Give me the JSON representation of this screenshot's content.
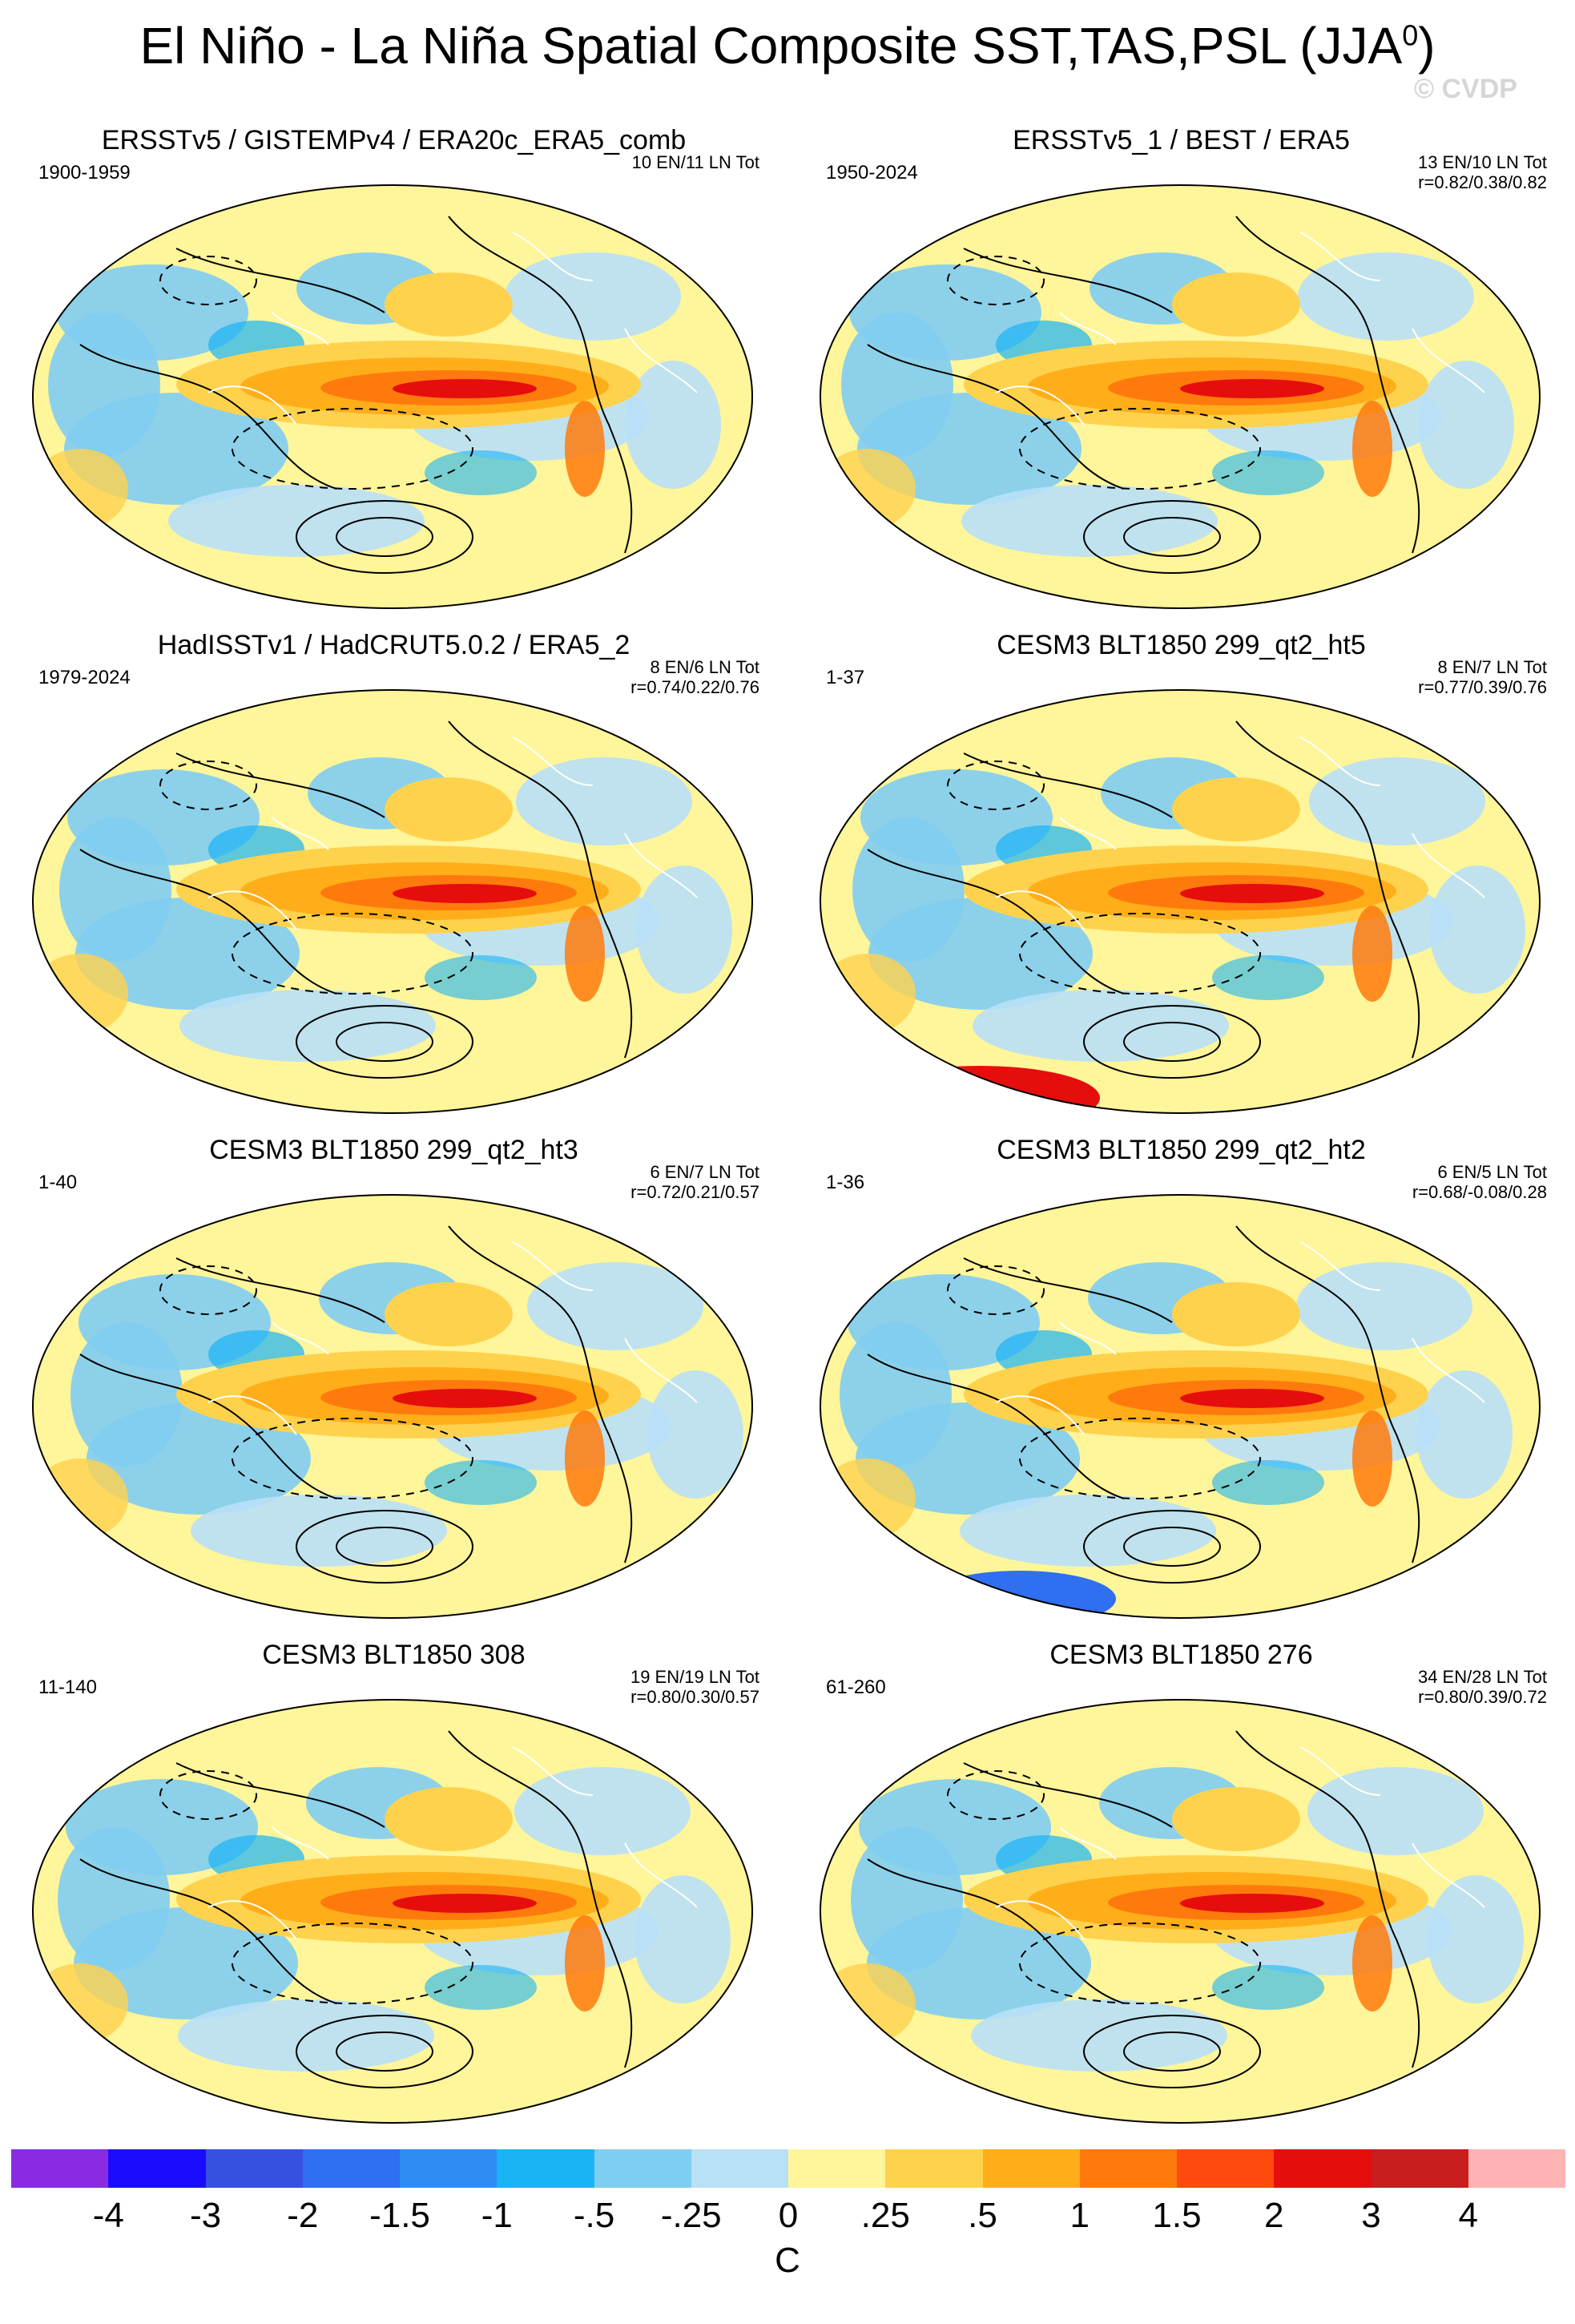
{
  "title_main": "El Niño - La Niña Spatial Composite SST,TAS,PSL (JJA",
  "title_sup": "0",
  "title_close": ")",
  "watermark": "© CVDP",
  "panels": [
    {
      "title": "ERSSTv5 / GISTEMPv4 / ERA20c_ERA5_comb",
      "period": "1900-1959",
      "stats1": "10 EN/11 LN Tot",
      "stats2": ""
    },
    {
      "title": "ERSSTv5_1 / BEST / ERA5",
      "period": "1950-2024",
      "stats1": "13 EN/10 LN Tot",
      "stats2": "r=0.82/0.38/0.82"
    },
    {
      "title": "HadISSTv1 / HadCRUT5.0.2 / ERA5_2",
      "period": "1979-2024",
      "stats1": "8 EN/6 LN Tot",
      "stats2": "r=0.74/0.22/0.76"
    },
    {
      "title": "CESM3 BLT1850 299_qt2_ht5",
      "period": "1-37",
      "stats1": "8 EN/7 LN Tot",
      "stats2": "r=0.77/0.39/0.76"
    },
    {
      "title": "CESM3 BLT1850 299_qt2_ht3",
      "period": "1-40",
      "stats1": "6 EN/7 LN Tot",
      "stats2": "r=0.72/0.21/0.57"
    },
    {
      "title": "CESM3 BLT1850 299_qt2_ht2",
      "period": "1-36",
      "stats1": "6 EN/5 LN Tot",
      "stats2": "r=0.68/-0.08/0.28"
    },
    {
      "title": "CESM3 BLT1850 308",
      "period": "11-140",
      "stats1": "19 EN/19 LN Tot",
      "stats2": "r=0.80/0.30/0.57"
    },
    {
      "title": "CESM3 BLT1850 276",
      "period": "61-260",
      "stats1": "34 EN/28 LN Tot",
      "stats2": "r=0.80/0.39/0.72"
    }
  ],
  "colorbar": {
    "colors": [
      "#8a2be2",
      "#1a0dff",
      "#3650e0",
      "#2f6ff0",
      "#2f8cf5",
      "#1ab4f5",
      "#80cdf2",
      "#b8e0f7",
      "#fff59a",
      "#ffd24d",
      "#ffae1a",
      "#ff7a0d",
      "#ff4a0d",
      "#e60d0d",
      "#c81e1e",
      "#ffb3b3"
    ],
    "ticks": [
      "-4",
      "-3",
      "-2",
      "-1.5",
      "-1",
      "-.5",
      "-.25",
      "0",
      ".25",
      ".5",
      "1",
      "1.5",
      "2",
      "3",
      "4"
    ],
    "units": "C"
  }
}
